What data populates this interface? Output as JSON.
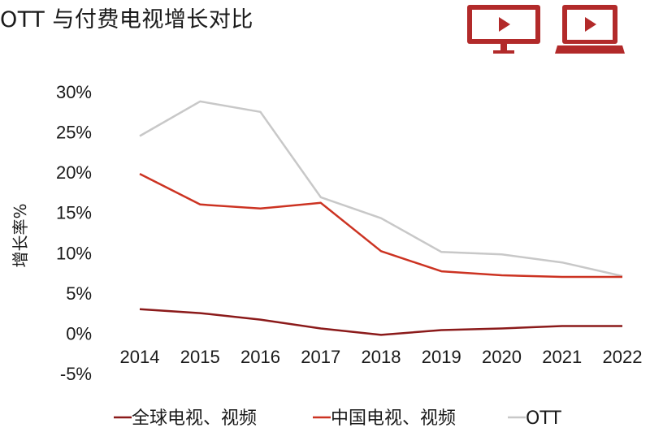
{
  "title": "OTT 与付费电视增长对比",
  "icons": {
    "tv": "tv-play-icon",
    "laptop": "laptop-play-icon",
    "color": "#b22a2a"
  },
  "chart_data": {
    "type": "line",
    "title": "OTT 与付费电视增长对比",
    "xlabel": "",
    "ylabel": "增长率%",
    "x": [
      "2014",
      "2015",
      "2016",
      "2017",
      "2018",
      "2019",
      "2020",
      "2021",
      "2022"
    ],
    "ylim": [
      -5,
      30
    ],
    "yticks": [
      -5,
      0,
      5,
      10,
      15,
      20,
      25,
      30
    ],
    "yunit": "%",
    "grid": false,
    "legend_position": "bottom",
    "series": [
      {
        "name": "全球电视、视频",
        "color": "#8b1a1a",
        "values": [
          3.0,
          2.5,
          1.7,
          0.6,
          -0.2,
          0.4,
          0.6,
          0.9,
          0.9
        ]
      },
      {
        "name": "中国电视、视频",
        "color": "#cc3322",
        "values": [
          19.8,
          16.0,
          15.5,
          16.2,
          10.2,
          7.7,
          7.2,
          7.0,
          7.0
        ]
      },
      {
        "name": "OTT",
        "color": "#c8c8c8",
        "values": [
          24.5,
          28.8,
          27.5,
          16.9,
          14.3,
          10.1,
          9.8,
          8.8,
          7.1
        ]
      }
    ]
  }
}
